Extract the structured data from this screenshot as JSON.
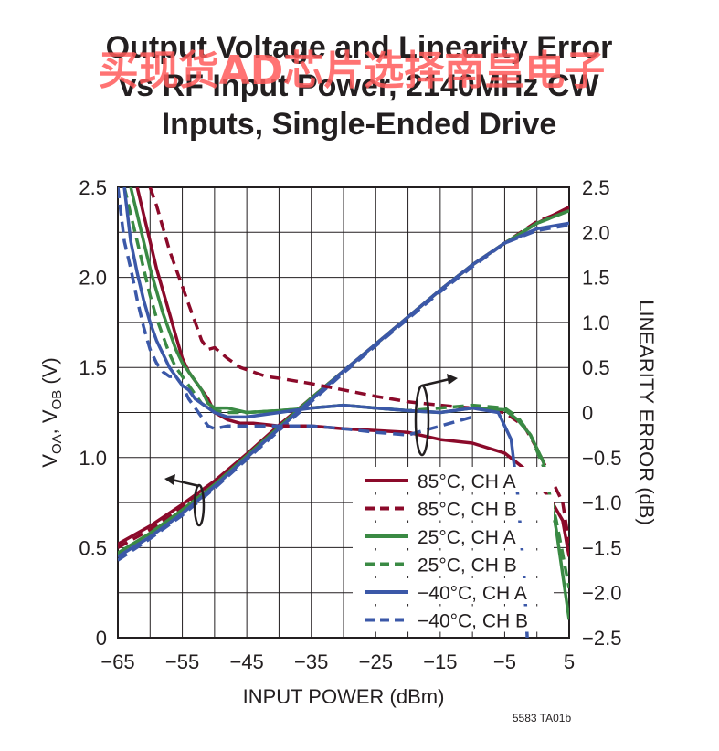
{
  "watermark": "买现货AD芯片选择南皇电子",
  "chart_data": {
    "type": "line",
    "title": [
      "Output Voltage and Linearity Error",
      "vs RF Input Power, 2140MHz CW",
      "Inputs, Single-Ended Drive"
    ],
    "xlabel": "INPUT POWER (dBm)",
    "ylabel_left_parts": [
      "V",
      "OA",
      ", V",
      "OB",
      " (V)"
    ],
    "ylabel_right": "LINEARITY ERROR (dB)",
    "xlim": [
      -65,
      5
    ],
    "ylim_left": [
      0,
      2.5
    ],
    "ylim_right": [
      -2.5,
      2.5
    ],
    "x_ticks": [
      "−65",
      "−55",
      "−45",
      "−35",
      "−25",
      "−15",
      "−5",
      "5"
    ],
    "y_left_ticks": [
      "0",
      "0.5",
      "1.0",
      "1.5",
      "2.0",
      "2.5"
    ],
    "y_right_ticks": [
      "−2.5",
      "−2.0",
      "−1.5",
      "−1.0",
      "−0.5",
      "0",
      "0.5",
      "1.0",
      "1.5",
      "2.0",
      "2.5"
    ],
    "grid": true,
    "legend_position": "bottom-right",
    "footnote": "5583 TA01b",
    "series": [
      {
        "name": "85°C, CH A",
        "color": "#8b0a2a",
        "dash": false,
        "axis": "left",
        "x": [
          -65,
          -60,
          -55,
          -50,
          -45,
          -40,
          -35,
          -30,
          -25,
          -20,
          -15,
          -10,
          -5,
          0,
          5
        ],
        "y": [
          0.52,
          0.62,
          0.74,
          0.87,
          1.02,
          1.18,
          1.33,
          1.48,
          1.63,
          1.78,
          1.93,
          2.07,
          2.19,
          2.3,
          2.39
        ]
      },
      {
        "name": "85°C, CH B",
        "color": "#8b0a2a",
        "dash": true,
        "axis": "left",
        "x": [
          -65,
          -60,
          -55,
          -50,
          -45,
          -40,
          -35,
          -30,
          -25,
          -20,
          -15,
          -10,
          -5,
          0,
          5
        ],
        "y": [
          0.5,
          0.6,
          0.72,
          0.86,
          1.01,
          1.17,
          1.33,
          1.48,
          1.63,
          1.78,
          1.93,
          2.07,
          2.19,
          2.31,
          2.38
        ]
      },
      {
        "name": "25°C, CH A",
        "color": "#3a8a44",
        "dash": false,
        "axis": "left",
        "x": [
          -65,
          -60,
          -55,
          -50,
          -45,
          -40,
          -35,
          -30,
          -25,
          -20,
          -15,
          -10,
          -5,
          0,
          5
        ],
        "y": [
          0.47,
          0.58,
          0.71,
          0.85,
          1.01,
          1.17,
          1.33,
          1.48,
          1.63,
          1.78,
          1.93,
          2.07,
          2.19,
          2.3,
          2.37
        ]
      },
      {
        "name": "25°C, CH B",
        "color": "#3a8a44",
        "dash": true,
        "axis": "left",
        "x": [
          -65,
          -60,
          -55,
          -50,
          -45,
          -40,
          -35,
          -30,
          -25,
          -20,
          -15,
          -10,
          -5,
          0,
          5
        ],
        "y": [
          0.46,
          0.57,
          0.7,
          0.84,
          1.0,
          1.16,
          1.32,
          1.48,
          1.63,
          1.78,
          1.93,
          2.07,
          2.19,
          2.3,
          2.37
        ]
      },
      {
        "name": "−40°C, CH A",
        "color": "#3b58a8",
        "dash": false,
        "axis": "left",
        "x": [
          -65,
          -60,
          -55,
          -50,
          -45,
          -40,
          -35,
          -30,
          -25,
          -20,
          -15,
          -10,
          -5,
          0,
          5
        ],
        "y": [
          0.45,
          0.56,
          0.69,
          0.84,
          1.0,
          1.16,
          1.32,
          1.48,
          1.63,
          1.78,
          1.93,
          2.07,
          2.19,
          2.27,
          2.3
        ]
      },
      {
        "name": "−40°C, CH B",
        "color": "#3b58a8",
        "dash": true,
        "axis": "left",
        "x": [
          -65,
          -60,
          -55,
          -50,
          -45,
          -40,
          -35,
          -30,
          -25,
          -20,
          -15,
          -10,
          -5,
          0,
          5
        ],
        "y": [
          0.43,
          0.55,
          0.68,
          0.83,
          0.99,
          1.15,
          1.31,
          1.47,
          1.62,
          1.77,
          1.92,
          2.06,
          2.19,
          2.26,
          2.29
        ]
      },
      {
        "name": "85°C, CH A",
        "color": "#8b0a2a",
        "dash": false,
        "axis": "right",
        "x": [
          -62,
          -61,
          -60,
          -59,
          -58,
          -57,
          -56,
          -55,
          -54,
          -53,
          -52,
          -51,
          -50,
          -48,
          -46,
          -44,
          -40,
          -35,
          -30,
          -25,
          -20,
          -15,
          -10,
          -5,
          -2,
          0,
          2,
          4,
          5
        ],
        "y": [
          2.5,
          2.2,
          1.9,
          1.6,
          1.35,
          1.1,
          0.85,
          0.6,
          0.45,
          0.35,
          0.25,
          0.15,
          0.0,
          -0.08,
          -0.12,
          -0.12,
          -0.15,
          -0.15,
          -0.18,
          -0.2,
          -0.22,
          -0.3,
          -0.34,
          -0.45,
          -0.62,
          -0.78,
          -0.95,
          -1.2,
          -1.6
        ]
      },
      {
        "name": "85°C, CH B",
        "color": "#8b0a2a",
        "dash": true,
        "axis": "right",
        "x": [
          -60,
          -59,
          -58,
          -57,
          -56,
          -55,
          -54,
          -53,
          -52,
          -51,
          -50,
          -48,
          -46,
          -44,
          -42,
          -40,
          -35,
          -30,
          -25,
          -20,
          -15,
          -10,
          -5,
          -2,
          0,
          2,
          4,
          5
        ],
        "y": [
          2.5,
          2.3,
          2.05,
          1.8,
          1.6,
          1.4,
          1.2,
          1.0,
          0.8,
          0.7,
          0.72,
          0.6,
          0.5,
          0.45,
          0.4,
          0.38,
          0.32,
          0.25,
          0.18,
          0.12,
          0.08,
          0.05,
          0.0,
          -0.15,
          -0.4,
          -0.7,
          -1.0,
          -1.45
        ]
      },
      {
        "name": "25°C, CH A",
        "color": "#3a8a44",
        "dash": false,
        "axis": "right",
        "x": [
          -63,
          -62,
          -61,
          -60,
          -59,
          -58,
          -57,
          -56,
          -55,
          -54,
          -53,
          -52,
          -51,
          -50,
          -48,
          -45,
          -40,
          -35,
          -30,
          -25,
          -20,
          -15,
          -10,
          -5,
          -3,
          -1,
          1,
          3,
          5
        ],
        "y": [
          2.5,
          2.2,
          1.9,
          1.6,
          1.35,
          1.1,
          0.9,
          0.7,
          0.55,
          0.45,
          0.35,
          0.25,
          0.1,
          0.05,
          0.05,
          0.0,
          0.02,
          0.05,
          0.08,
          0.05,
          0.02,
          0.0,
          0.05,
          0.03,
          -0.08,
          -0.25,
          -0.55,
          -1.3,
          -2.3
        ]
      },
      {
        "name": "25°C, CH B",
        "color": "#3a8a44",
        "dash": true,
        "axis": "right",
        "x": [
          -64,
          -63,
          -62,
          -61,
          -60,
          -59,
          -58,
          -57,
          -56,
          -55,
          -54,
          -53,
          -52,
          -51,
          -50,
          -48,
          -45,
          -40,
          -35,
          -30,
          -25,
          -20,
          -15,
          -10,
          -5,
          -3,
          -1,
          1,
          3,
          5
        ],
        "y": [
          2.5,
          2.2,
          1.9,
          1.6,
          1.3,
          1.05,
          0.85,
          0.65,
          0.5,
          0.4,
          0.3,
          0.2,
          0.1,
          0.05,
          0.02,
          0.0,
          0.0,
          0.02,
          0.05,
          0.08,
          0.05,
          0.02,
          0.05,
          0.08,
          0.05,
          -0.05,
          -0.25,
          -0.6,
          -1.2,
          -1.95
        ]
      },
      {
        "name": "−40°C, CH A",
        "color": "#3b58a8",
        "dash": false,
        "axis": "right",
        "x": [
          -64,
          -63.5,
          -63,
          -62,
          -61,
          -60,
          -59,
          -58,
          -57,
          -56,
          -55,
          -54,
          -53,
          -52,
          -51,
          -50,
          -48,
          -45,
          -40,
          -35,
          -30,
          -25,
          -20,
          -15,
          -10,
          -6,
          -4,
          -3,
          -2,
          -1.5
        ],
        "y": [
          2.5,
          2.2,
          1.9,
          1.55,
          1.25,
          1.0,
          0.8,
          0.65,
          0.5,
          0.4,
          0.3,
          0.25,
          0.15,
          0.1,
          0.05,
          0.0,
          -0.05,
          -0.05,
          0.0,
          0.05,
          0.08,
          0.05,
          0.02,
          0.0,
          0.05,
          0.0,
          -0.3,
          -0.9,
          -1.8,
          -2.5
        ]
      },
      {
        "name": "−40°C, CH B",
        "color": "#3b58a8",
        "dash": true,
        "axis": "right",
        "x": [
          -65,
          -64.5,
          -64,
          -63,
          -62,
          -61,
          -60,
          -59,
          -58,
          -57,
          -56,
          -55,
          -54,
          -53,
          -52,
          -51,
          -50,
          -48,
          -45,
          -40,
          -35,
          -30,
          -25,
          -20,
          -15,
          -10
        ],
        "y": [
          2.5,
          2.2,
          1.9,
          1.6,
          1.25,
          0.95,
          0.7,
          0.55,
          0.45,
          0.4,
          0.4,
          0.3,
          0.15,
          0.05,
          -0.05,
          -0.15,
          -0.18,
          -0.15,
          -0.15,
          -0.15,
          -0.15,
          -0.18,
          -0.22,
          -0.25,
          -0.15,
          -0.05
        ]
      }
    ]
  }
}
